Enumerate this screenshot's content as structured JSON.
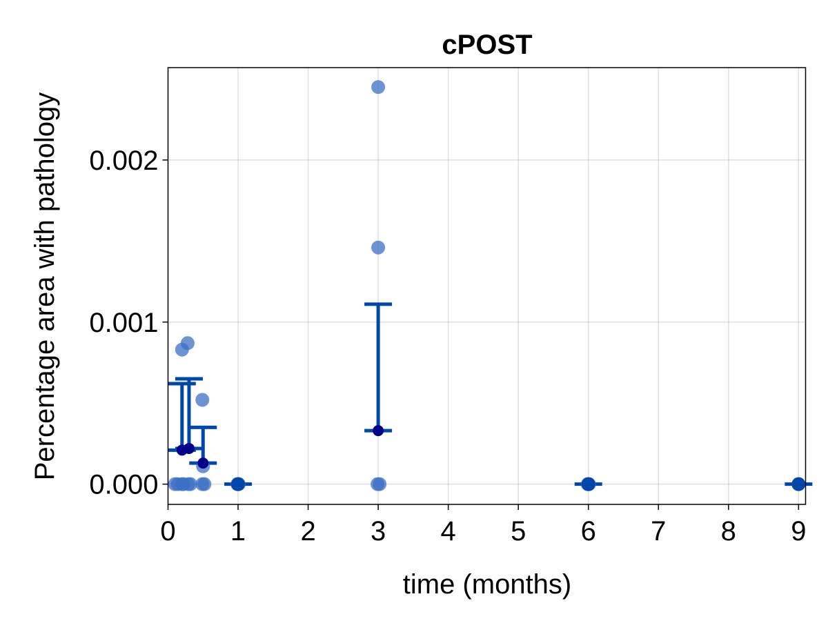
{
  "chart_data": {
    "type": "scatter",
    "title": "cPOST",
    "xlabel": "time (months)",
    "ylabel": "Percentage area with pathology",
    "xlim": [
      0,
      9.1
    ],
    "ylim": [
      -0.000125,
      0.00257
    ],
    "xticks": [
      0,
      1,
      2,
      3,
      4,
      5,
      6,
      7,
      8,
      9
    ],
    "xtick_labels": [
      "0",
      "1",
      "2",
      "3",
      "4",
      "5",
      "6",
      "7",
      "8",
      "9"
    ],
    "yticks": [
      0,
      0.001,
      0.002
    ],
    "ytick_labels": [
      "0.000",
      "0.001",
      "0.002"
    ],
    "grid": true,
    "legend": "none",
    "colors": {
      "points": "#3b6fc4",
      "points_opacity": 0.75,
      "mean": "#00008b",
      "errorbar": "#0047ab"
    },
    "points": [
      {
        "x": 0.1,
        "y": 0
      },
      {
        "x": 0.14,
        "y": 0
      },
      {
        "x": 0.2,
        "y": 0.00083
      },
      {
        "x": 0.2,
        "y": 0
      },
      {
        "x": 0.22,
        "y": 0
      },
      {
        "x": 0.28,
        "y": 0.00087
      },
      {
        "x": 0.29,
        "y": 0
      },
      {
        "x": 0.32,
        "y": 0
      },
      {
        "x": 0.49,
        "y": 0.00052
      },
      {
        "x": 0.5,
        "y": 0.00011
      },
      {
        "x": 0.52,
        "y": 0
      },
      {
        "x": 0.49,
        "y": 0
      },
      {
        "x": 0.99,
        "y": 0
      },
      {
        "x": 1.01,
        "y": 0
      },
      {
        "x": 3.0,
        "y": 0.00245
      },
      {
        "x": 3.0,
        "y": 0.00146
      },
      {
        "x": 2.99,
        "y": 0
      },
      {
        "x": 3.02,
        "y": 0
      },
      {
        "x": 5.99,
        "y": 0
      },
      {
        "x": 6.01,
        "y": 0
      },
      {
        "x": 9.0,
        "y": 0
      }
    ],
    "summary": [
      {
        "x": 0.2,
        "mean": 0.00021,
        "lower": 0.00021,
        "upper": 0.00062
      },
      {
        "x": 0.3,
        "mean": 0.00022,
        "lower": 0.00022,
        "upper": 0.00065
      },
      {
        "x": 0.5,
        "mean": 0.00013,
        "lower": 0.00013,
        "upper": 0.00035
      },
      {
        "x": 1.0,
        "mean": 0,
        "lower": 0,
        "upper": 0
      },
      {
        "x": 3.0,
        "mean": 0.00033,
        "lower": 0.00033,
        "upper": 0.00111
      },
      {
        "x": 6.0,
        "mean": 0,
        "lower": 0,
        "upper": 0
      },
      {
        "x": 9.0,
        "mean": 0,
        "lower": 0,
        "upper": 0
      }
    ]
  }
}
